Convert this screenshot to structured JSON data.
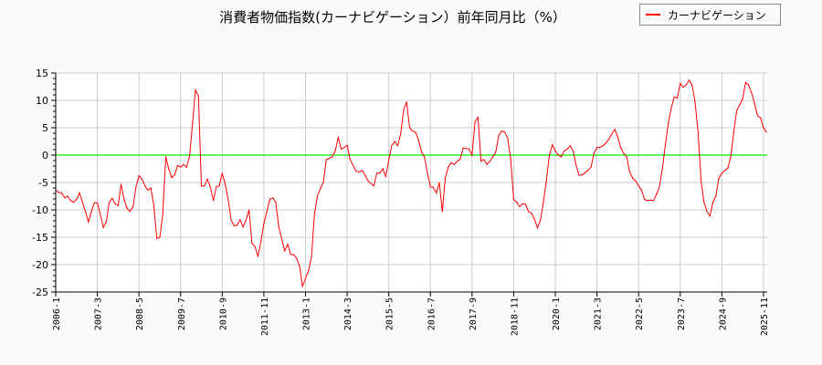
{
  "chart_data": {
    "type": "line",
    "title": "消費者物価指数(カーナビゲーション）前年同月比（%）",
    "xlabel": "",
    "ylabel": "",
    "ylim": [
      -25,
      15
    ],
    "y_ticks": [
      15,
      10,
      5,
      0,
      -5,
      -10,
      -15,
      -20,
      -25
    ],
    "x_tick_labels": [
      "2006-1",
      "2007-3",
      "2008-5",
      "2009-7",
      "2010-9",
      "2011-11",
      "2013-1",
      "2014-3",
      "2015-5",
      "2016-7",
      "2017-9",
      "2018-11",
      "2020-1",
      "2021-3",
      "2022-5",
      "2023-7",
      "2024-9",
      "2025-11"
    ],
    "grid": true,
    "legend_position": "top-right",
    "reference_line": {
      "y": 0,
      "color": "#00ee00"
    },
    "series": [
      {
        "name": "カーナビゲーション",
        "color": "#ff0000",
        "x": [
          "2006-1",
          "2006-2",
          "2006-3",
          "2006-4",
          "2006-5",
          "2006-6",
          "2006-7",
          "2006-8",
          "2006-9",
          "2006-10",
          "2006-11",
          "2006-12",
          "2007-1",
          "2007-2",
          "2007-3",
          "2007-4",
          "2007-5",
          "2007-6",
          "2007-7",
          "2007-8",
          "2007-9",
          "2007-10",
          "2007-11",
          "2007-12",
          "2008-1",
          "2008-2",
          "2008-3",
          "2008-4",
          "2008-5",
          "2008-6",
          "2008-7",
          "2008-8",
          "2008-9",
          "2008-10",
          "2008-11",
          "2008-12",
          "2009-1",
          "2009-2",
          "2009-3",
          "2009-4",
          "2009-5",
          "2009-6",
          "2009-7",
          "2009-8",
          "2009-9",
          "2009-10",
          "2009-11",
          "2009-12",
          "2010-1",
          "2010-2",
          "2010-3",
          "2010-4",
          "2010-5",
          "2010-6",
          "2010-7",
          "2010-8",
          "2010-9",
          "2010-10",
          "2010-11",
          "2010-12",
          "2011-1",
          "2011-2",
          "2011-3",
          "2011-4",
          "2011-5",
          "2011-6",
          "2011-7",
          "2011-8",
          "2011-9",
          "2011-10",
          "2011-11",
          "2011-12",
          "2012-1",
          "2012-2",
          "2012-3",
          "2012-4",
          "2012-5",
          "2012-6",
          "2012-7",
          "2012-8",
          "2012-9",
          "2012-10",
          "2012-11",
          "2012-12",
          "2013-1",
          "2013-2",
          "2013-3",
          "2013-4",
          "2013-5",
          "2013-6",
          "2013-7",
          "2013-8",
          "2013-9",
          "2013-10",
          "2013-11",
          "2013-12",
          "2014-1",
          "2014-2",
          "2014-3",
          "2014-4",
          "2014-5",
          "2014-6",
          "2014-7",
          "2014-8",
          "2014-9",
          "2014-10",
          "2014-11",
          "2014-12",
          "2015-1",
          "2015-2",
          "2015-3",
          "2015-4",
          "2015-5",
          "2015-6",
          "2015-7",
          "2015-8",
          "2015-9",
          "2015-10",
          "2015-11",
          "2015-12",
          "2016-1",
          "2016-2",
          "2016-3",
          "2016-4",
          "2016-5",
          "2016-6",
          "2016-7",
          "2016-8",
          "2016-9",
          "2016-10",
          "2016-11",
          "2016-12",
          "2017-1",
          "2017-2",
          "2017-3",
          "2017-4",
          "2017-5",
          "2017-6",
          "2017-7",
          "2017-8",
          "2017-9",
          "2017-10",
          "2017-11",
          "2017-12",
          "2018-1",
          "2018-2",
          "2018-3",
          "2018-4",
          "2018-5",
          "2018-6",
          "2018-7",
          "2018-8",
          "2018-9",
          "2018-10",
          "2018-11",
          "2018-12",
          "2019-1",
          "2019-2",
          "2019-3",
          "2019-4",
          "2019-5",
          "2019-6",
          "2019-7",
          "2019-8",
          "2019-9",
          "2019-10",
          "2019-11",
          "2019-12",
          "2020-1",
          "2020-2",
          "2020-3",
          "2020-4",
          "2020-5",
          "2020-6",
          "2020-7",
          "2020-8",
          "2020-9",
          "2020-10",
          "2020-11",
          "2020-12",
          "2021-1",
          "2021-2",
          "2021-3",
          "2021-4",
          "2021-5",
          "2021-6",
          "2021-7",
          "2021-8",
          "2021-9",
          "2021-10",
          "2021-11",
          "2021-12",
          "2022-1",
          "2022-2",
          "2022-3",
          "2022-4",
          "2022-5",
          "2022-6",
          "2022-7",
          "2022-8",
          "2022-9",
          "2022-10",
          "2022-11",
          "2022-12",
          "2023-1",
          "2023-2",
          "2023-3",
          "2023-4",
          "2023-5",
          "2023-6",
          "2023-7",
          "2023-8",
          "2023-9",
          "2023-10",
          "2023-11",
          "2023-12",
          "2024-1",
          "2024-2",
          "2024-3",
          "2024-4",
          "2024-5",
          "2024-6",
          "2024-7",
          "2024-8",
          "2024-9",
          "2024-10",
          "2024-11",
          "2024-12",
          "2025-1",
          "2025-2",
          "2025-3",
          "2025-4",
          "2025-5",
          "2025-6",
          "2025-7",
          "2025-8",
          "2025-9",
          "2025-10",
          "2025-11",
          "2025-12"
        ],
        "values": [
          -6.4,
          -6.8,
          -6.9,
          -7.8,
          -7.5,
          -8.3,
          -8.6,
          -8.1,
          -6.9,
          -8.6,
          -10.3,
          -12.2,
          -10.3,
          -8.7,
          -8.7,
          -10.8,
          -13.2,
          -12.2,
          -8.6,
          -7.9,
          -8.9,
          -9.2,
          -5.3,
          -8.1,
          -9.7,
          -10.3,
          -9.4,
          -5.8,
          -3.8,
          -4.4,
          -5.6,
          -6.4,
          -6.0,
          -9.2,
          -15.2,
          -15.0,
          -10.8,
          -0.3,
          -2.5,
          -4.1,
          -3.6,
          -1.9,
          -2.2,
          -1.7,
          -2.2,
          -0.3,
          5.8,
          11.9,
          10.8,
          -5.7,
          -5.6,
          -4.4,
          -5.8,
          -8.3,
          -5.8,
          -5.6,
          -3.3,
          -5.3,
          -8.1,
          -11.9,
          -12.9,
          -12.8,
          -11.8,
          -13.1,
          -11.9,
          -10.0,
          -16.1,
          -16.7,
          -18.5,
          -15.8,
          -12.5,
          -10.3,
          -8.1,
          -7.8,
          -8.6,
          -13.1,
          -15.3,
          -17.5,
          -16.3,
          -18.1,
          -18.2,
          -18.8,
          -20.3,
          -24.0,
          -22.5,
          -21.1,
          -18.6,
          -10.8,
          -7.5,
          -6.1,
          -5.0,
          -0.8,
          -0.6,
          -0.3,
          0.8,
          3.3,
          1.1,
          1.4,
          1.8,
          -0.8,
          -1.9,
          -2.9,
          -3.1,
          -2.8,
          -3.6,
          -4.7,
          -5.2,
          -5.6,
          -3.3,
          -3.3,
          -2.5,
          -3.9,
          -0.8,
          1.7,
          2.5,
          1.7,
          3.9,
          8.3,
          9.7,
          5.0,
          4.4,
          4.2,
          2.8,
          0.6,
          -0.3,
          -3.3,
          -5.8,
          -5.9,
          -6.9,
          -5.0,
          -10.3,
          -4.2,
          -2.2,
          -1.4,
          -1.7,
          -1.1,
          -0.8,
          1.3,
          1.2,
          1.1,
          0,
          6.1,
          6.9,
          -1.1,
          -0.8,
          -1.7,
          -1.1,
          -0.3,
          0.6,
          3.6,
          4.4,
          4.2,
          3.1,
          -0.8,
          -8.1,
          -8.6,
          -9.4,
          -8.9,
          -9.0,
          -10.3,
          -10.6,
          -11.7,
          -13.3,
          -11.9,
          -8.6,
          -4.7,
          0,
          1.9,
          0.8,
          0,
          -0.3,
          0.8,
          1.1,
          1.7,
          0.8,
          -1.9,
          -3.7,
          -3.6,
          -3.2,
          -2.8,
          -2.2,
          0.3,
          1.4,
          1.4,
          1.7,
          2.2,
          2.9,
          3.9,
          4.7,
          3.3,
          1.4,
          0.3,
          -0.3,
          -3.1,
          -4.2,
          -4.7,
          -5.6,
          -6.4,
          -8.1,
          -8.3,
          -8.2,
          -8.3,
          -7.2,
          -5.8,
          -2.5,
          1.9,
          5.8,
          8.6,
          10.6,
          10.4,
          13.1,
          12.4,
          12.8,
          13.7,
          12.8,
          9.7,
          4.2,
          -4.7,
          -8.6,
          -10.3,
          -11.1,
          -8.6,
          -7.5,
          -4.2,
          -3.3,
          -2.8,
          -2.4,
          -0.3,
          4.2,
          8.1,
          9.2,
          10.3,
          13.3,
          12.8,
          11.4,
          9.4,
          7.2,
          6.8,
          5.0,
          4.2
        ]
      }
    ]
  }
}
